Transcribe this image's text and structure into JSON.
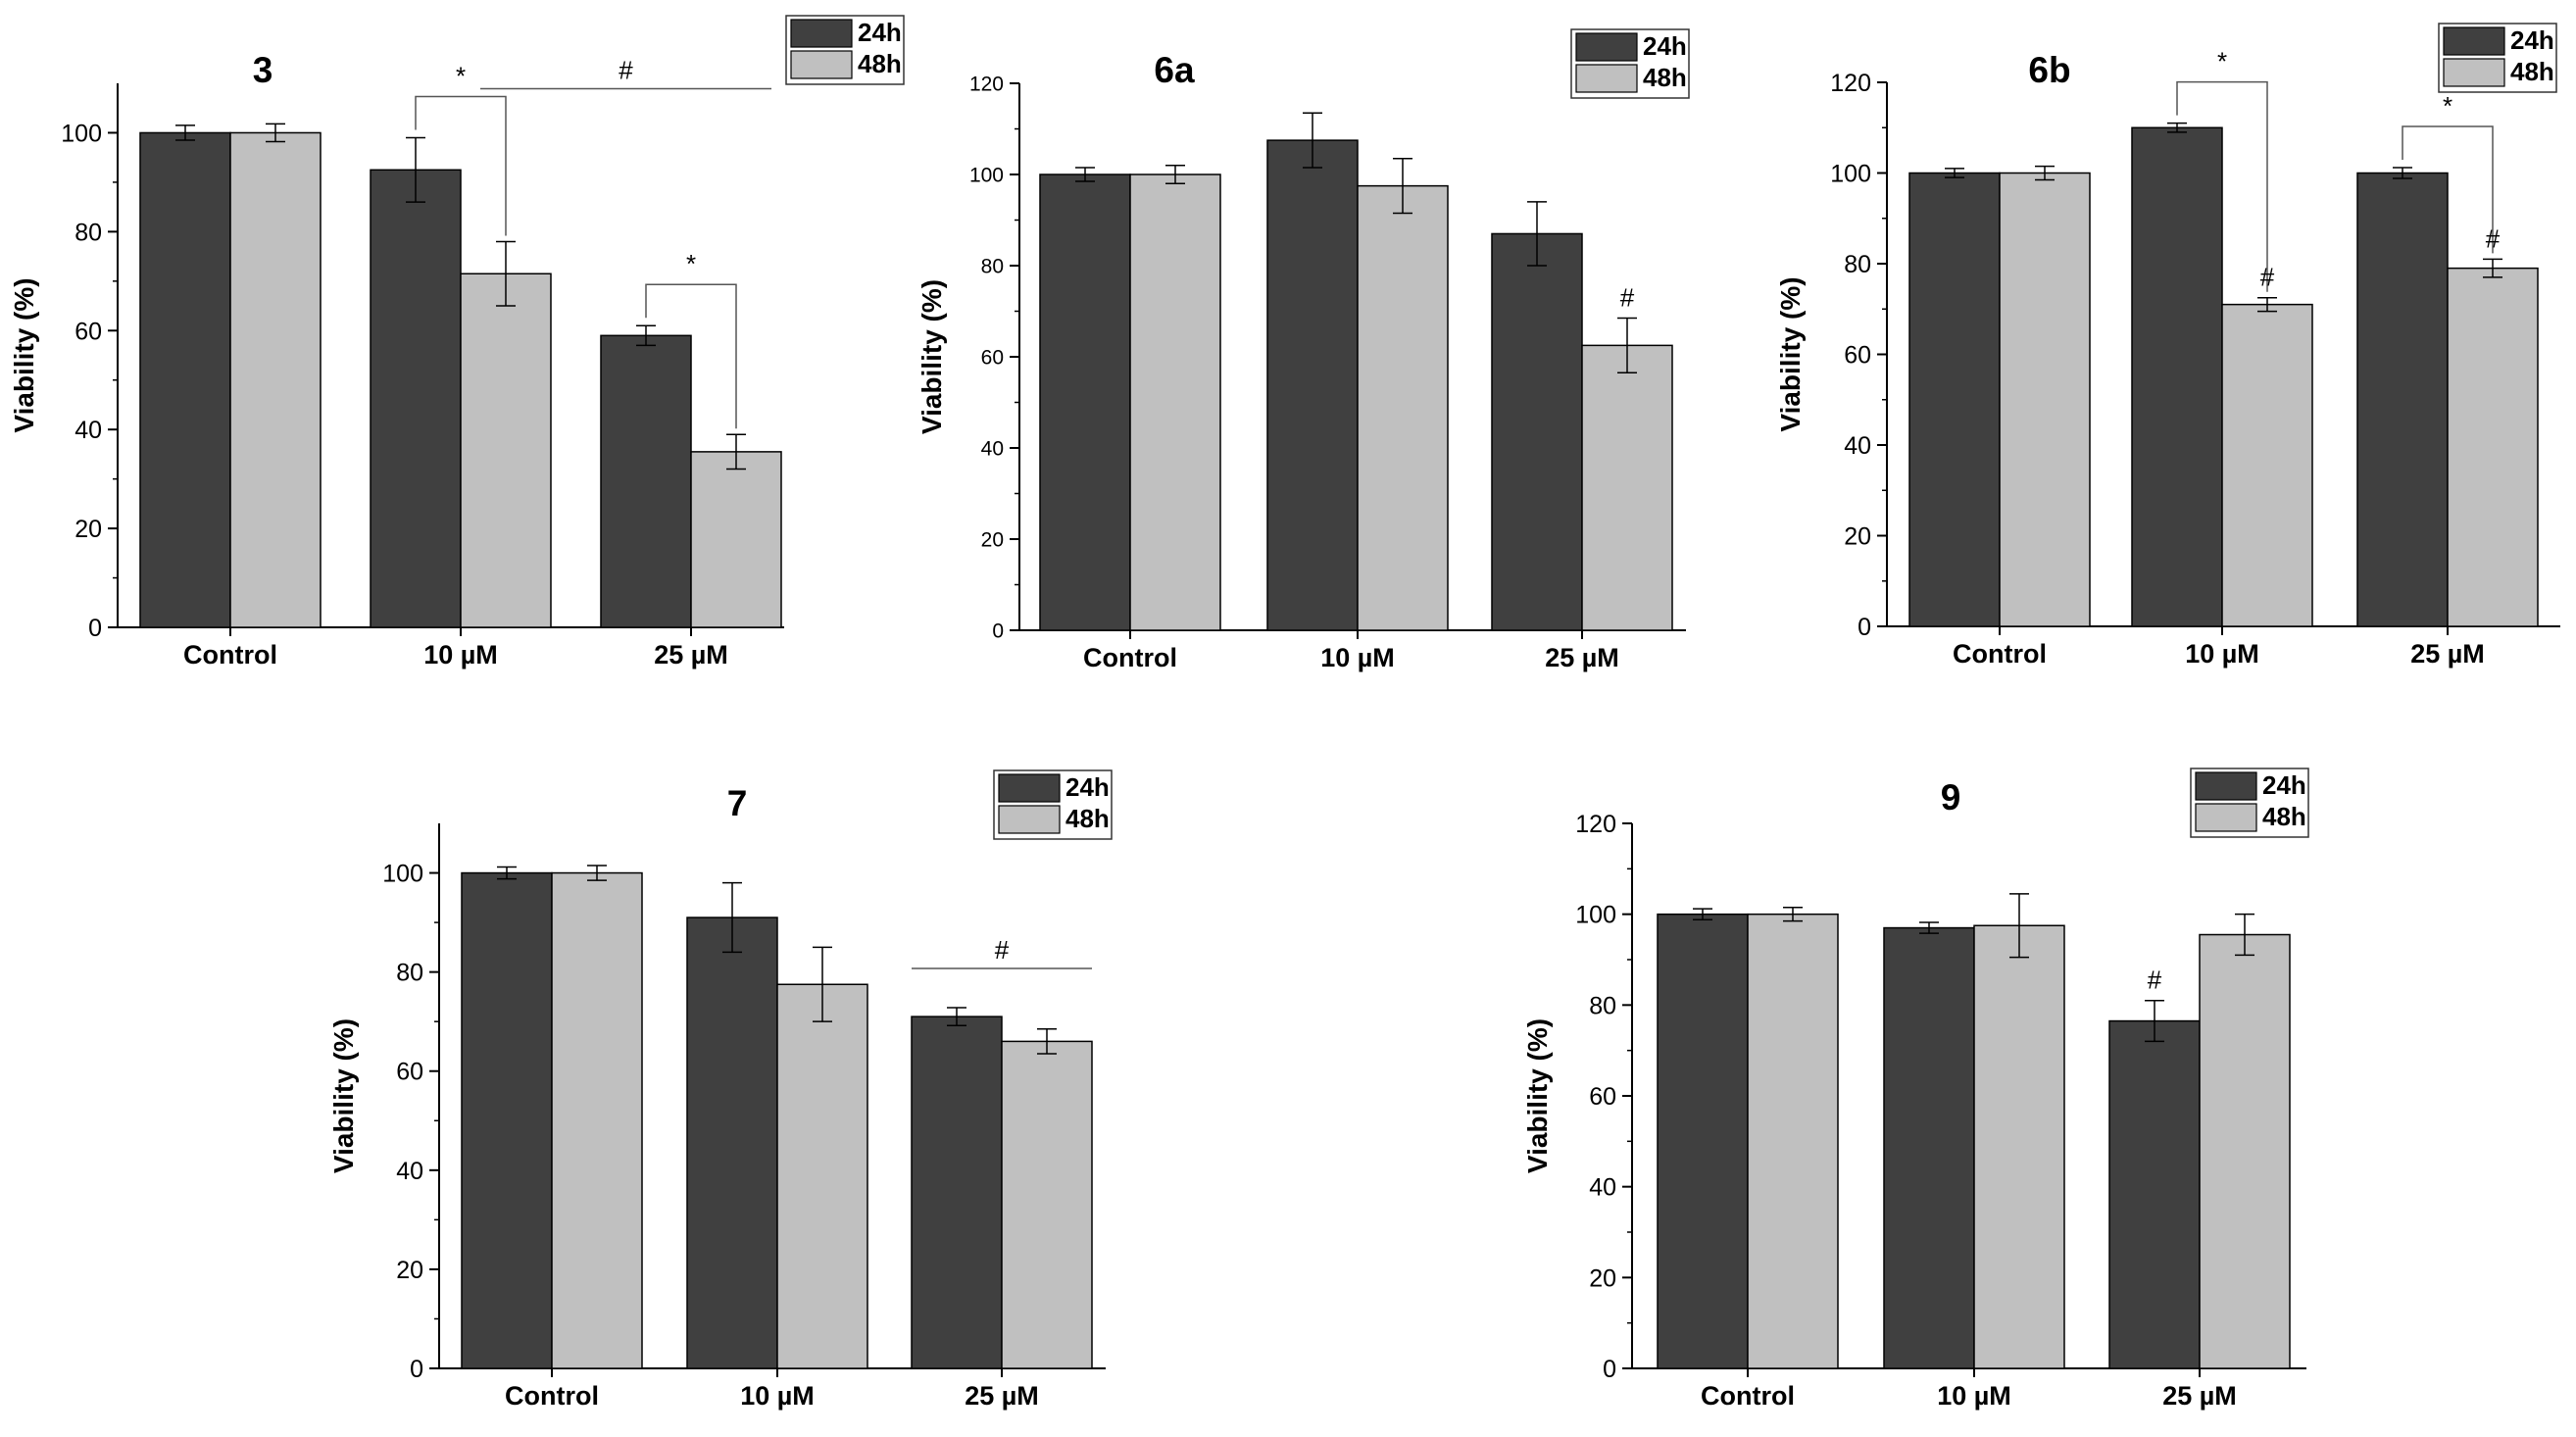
{
  "figure": {
    "colors": {
      "24h": "#404040",
      "48h": "#c0c0c0",
      "axis": "#000000"
    }
  },
  "chart_data": [
    {
      "type": "bar",
      "title": "3",
      "ylabel": "Viability (%)",
      "categories": [
        "Control",
        "10 µM",
        "25 µM"
      ],
      "ylim": [
        0,
        110
      ],
      "yticks": [
        0,
        20,
        40,
        60,
        80,
        100
      ],
      "legend": "top-right",
      "series": [
        {
          "name": "24h",
          "values": [
            100,
            92.5,
            59
          ],
          "errors": [
            1.5,
            6.5,
            2
          ]
        },
        {
          "name": "48h",
          "values": [
            100,
            71.5,
            35.5
          ],
          "errors": [
            1.8,
            6.5,
            3.5
          ]
        }
      ],
      "annotations": [
        {
          "text": "*",
          "kind": "bracket",
          "from": "10 µM 24h",
          "to": "10 µM 48h"
        },
        {
          "text": "#",
          "kind": "line",
          "from": "10 µM",
          "to": "25 µM"
        },
        {
          "text": "*",
          "kind": "bracket",
          "from": "25 µM 24h",
          "to": "25 µM 48h"
        }
      ]
    },
    {
      "type": "bar",
      "title": "6a",
      "ylabel": "Viability (%)",
      "categories": [
        "Control",
        "10 µM",
        "25 µM"
      ],
      "ylim": [
        0,
        120
      ],
      "yticks": [
        0,
        20,
        40,
        60,
        80,
        100,
        120
      ],
      "legend": "top-right",
      "series": [
        {
          "name": "24h",
          "values": [
            100,
            107.5,
            87
          ],
          "errors": [
            1.5,
            6,
            7
          ]
        },
        {
          "name": "48h",
          "values": [
            100,
            97.5,
            62.5
          ],
          "errors": [
            2,
            6,
            6
          ]
        }
      ],
      "annotations": [
        {
          "text": "#",
          "kind": "mark",
          "on": "25 µM 48h"
        }
      ]
    },
    {
      "type": "bar",
      "title": "6b",
      "ylabel": "Viability (%)",
      "categories": [
        "Control",
        "10 µM",
        "25 µM"
      ],
      "ylim": [
        0,
        120
      ],
      "yticks": [
        0,
        20,
        40,
        60,
        80,
        100,
        120
      ],
      "legend": "top-right",
      "series": [
        {
          "name": "24h",
          "values": [
            100,
            110,
            100
          ],
          "errors": [
            1,
            1,
            1.2
          ]
        },
        {
          "name": "48h",
          "values": [
            100,
            71,
            79
          ],
          "errors": [
            1.5,
            1.5,
            2
          ]
        }
      ],
      "annotations": [
        {
          "text": "*",
          "kind": "bracket",
          "from": "10 µM 24h",
          "to": "10 µM 48h"
        },
        {
          "text": "#",
          "kind": "mark",
          "on": "10 µM 48h"
        },
        {
          "text": "*",
          "kind": "bracket",
          "from": "25 µM 24h",
          "to": "25 µM 48h"
        },
        {
          "text": "#",
          "kind": "mark",
          "on": "25 µM 48h"
        }
      ]
    },
    {
      "type": "bar",
      "title": "7",
      "ylabel": "Viability (%)",
      "categories": [
        "Control",
        "10 µM",
        "25 µM"
      ],
      "ylim": [
        0,
        110
      ],
      "yticks": [
        0,
        20,
        40,
        60,
        80,
        100
      ],
      "legend": "top-right",
      "series": [
        {
          "name": "24h",
          "values": [
            100,
            91,
            71
          ],
          "errors": [
            1.2,
            7,
            1.8
          ]
        },
        {
          "name": "48h",
          "values": [
            100,
            77.5,
            66
          ],
          "errors": [
            1.5,
            7.5,
            2.5
          ]
        }
      ],
      "annotations": [
        {
          "text": "#",
          "kind": "line",
          "from": "25 µM 24h",
          "to": "25 µM 48h"
        }
      ]
    },
    {
      "type": "bar",
      "title": "9",
      "ylabel": "Viability (%)",
      "categories": [
        "Control",
        "10 µM",
        "25 µM"
      ],
      "ylim": [
        0,
        120
      ],
      "yticks": [
        0,
        20,
        40,
        60,
        80,
        100,
        120
      ],
      "legend": "top-right",
      "series": [
        {
          "name": "24h",
          "values": [
            100,
            97,
            76.5
          ],
          "errors": [
            1.2,
            1.2,
            4.5
          ]
        },
        {
          "name": "48h",
          "values": [
            100,
            97.5,
            95.5
          ],
          "errors": [
            1.5,
            7,
            4.5
          ]
        }
      ],
      "annotations": [
        {
          "text": "#",
          "kind": "mark",
          "on": "25 µM 24h"
        }
      ]
    }
  ]
}
